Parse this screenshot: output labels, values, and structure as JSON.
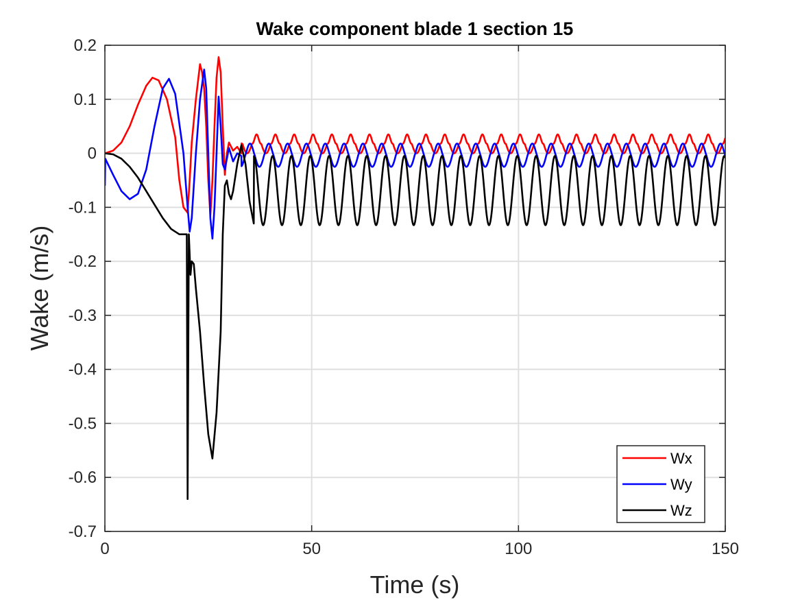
{
  "chart_data": {
    "type": "line",
    "title": "Wake component blade 1 section 15",
    "xlabel": "Time (s)",
    "ylabel": "Wake (m/s)",
    "xlim": [
      0,
      150
    ],
    "ylim": [
      -0.7,
      0.2
    ],
    "xticks": [
      0,
      50,
      100,
      150
    ],
    "xtick_labels": [
      "0",
      "50",
      "100",
      "150"
    ],
    "yticks": [
      -0.7,
      -0.6,
      -0.5,
      -0.4,
      -0.3,
      -0.2,
      -0.1,
      0,
      0.1,
      0.2
    ],
    "ytick_labels": [
      "-0.7",
      "-0.6",
      "-0.5",
      "-0.4",
      "-0.3",
      "-0.2",
      "-0.1",
      "0",
      "0.1",
      "0.2"
    ],
    "grid": true,
    "legend_position": "bottom-right",
    "series": [
      {
        "name": "Wx",
        "color": "#ff0000",
        "transient": [
          [
            0,
            0
          ],
          [
            2,
            0.005
          ],
          [
            4,
            0.02
          ],
          [
            6,
            0.05
          ],
          [
            8,
            0.09
          ],
          [
            10,
            0.125
          ],
          [
            11.5,
            0.14
          ],
          [
            13,
            0.135
          ],
          [
            15,
            0.1
          ],
          [
            17,
            0.03
          ],
          [
            18,
            -0.05
          ],
          [
            19,
            -0.1
          ],
          [
            20,
            -0.11
          ],
          [
            20.5,
            -0.05
          ],
          [
            21,
            0.02
          ],
          [
            22,
            0.1
          ],
          [
            23,
            0.165
          ],
          [
            23.5,
            0.15
          ],
          [
            24,
            0.12
          ],
          [
            24.5,
            0.05
          ],
          [
            25,
            -0.05
          ],
          [
            25.5,
            -0.115
          ],
          [
            26,
            -0.05
          ],
          [
            26.5,
            0.05
          ],
          [
            27,
            0.14
          ],
          [
            27.5,
            0.178
          ],
          [
            28,
            0.15
          ],
          [
            28.5,
            0.05
          ],
          [
            29,
            -0.04
          ],
          [
            29.5,
            0.0
          ],
          [
            30,
            0.02
          ],
          [
            31,
            0.005
          ],
          [
            32,
            0.012
          ],
          [
            33,
            0.0
          ]
        ],
        "periodic": {
          "start": 33,
          "end": 150,
          "period": 4.55,
          "peak": 0.035,
          "trough": 0.0,
          "phase": 1.2,
          "sharpness": 2.5
        }
      },
      {
        "name": "Wy",
        "color": "#0000ff",
        "transient": [
          [
            0,
            -0.06
          ],
          [
            0.1,
            -0.01
          ],
          [
            2,
            -0.04
          ],
          [
            4,
            -0.07
          ],
          [
            6,
            -0.085
          ],
          [
            8,
            -0.075
          ],
          [
            10,
            -0.03
          ],
          [
            12,
            0.05
          ],
          [
            14,
            0.12
          ],
          [
            15.5,
            0.138
          ],
          [
            17,
            0.11
          ],
          [
            19,
            0.0
          ],
          [
            20,
            -0.1
          ],
          [
            20.5,
            -0.145
          ],
          [
            21,
            -0.12
          ],
          [
            22,
            0.0
          ],
          [
            23,
            0.1
          ],
          [
            24,
            0.155
          ],
          [
            24.5,
            0.12
          ],
          [
            25,
            0.0
          ],
          [
            25.5,
            -0.12
          ],
          [
            26,
            -0.158
          ],
          [
            26.5,
            -0.1
          ],
          [
            27,
            0.0
          ],
          [
            27.5,
            0.105
          ],
          [
            28,
            0.05
          ],
          [
            28.5,
            -0.02
          ],
          [
            29,
            -0.03
          ],
          [
            30,
            0.01
          ],
          [
            31,
            -0.015
          ],
          [
            32,
            0.0
          ],
          [
            33,
            -0.005
          ]
        ],
        "periodic": {
          "start": 33,
          "end": 150,
          "period": 4.55,
          "peak": 0.018,
          "trough": -0.025,
          "phase": 3.4,
          "sharpness": 1.2
        }
      },
      {
        "name": "Wz",
        "color": "#000000",
        "transient": [
          [
            0,
            0
          ],
          [
            2,
            -0.002
          ],
          [
            4,
            -0.01
          ],
          [
            6,
            -0.025
          ],
          [
            8,
            -0.045
          ],
          [
            10,
            -0.07
          ],
          [
            12,
            -0.095
          ],
          [
            14,
            -0.12
          ],
          [
            16,
            -0.14
          ],
          [
            18,
            -0.15
          ],
          [
            19.8,
            -0.15
          ],
          [
            20,
            -0.64
          ],
          [
            20.3,
            -0.15
          ],
          [
            20.7,
            -0.225
          ],
          [
            21,
            -0.2
          ],
          [
            21.5,
            -0.205
          ],
          [
            22,
            -0.25
          ],
          [
            23,
            -0.33
          ],
          [
            24,
            -0.43
          ],
          [
            25,
            -0.52
          ],
          [
            26,
            -0.565
          ],
          [
            27,
            -0.48
          ],
          [
            28,
            -0.33
          ],
          [
            28.5,
            -0.15
          ],
          [
            29,
            -0.06
          ],
          [
            29.5,
            -0.05
          ],
          [
            30,
            -0.075
          ],
          [
            30.5,
            -0.085
          ],
          [
            31,
            -0.07
          ],
          [
            32,
            -0.02
          ],
          [
            33,
            0.015
          ],
          [
            34,
            -0.02
          ],
          [
            35,
            -0.09
          ],
          [
            36,
            -0.13
          ]
        ],
        "periodic": {
          "start": 36,
          "end": 150,
          "period": 4.55,
          "peak": -0.005,
          "trough": -0.133,
          "phase": 0.0,
          "sharpness": 1.0
        }
      }
    ]
  }
}
